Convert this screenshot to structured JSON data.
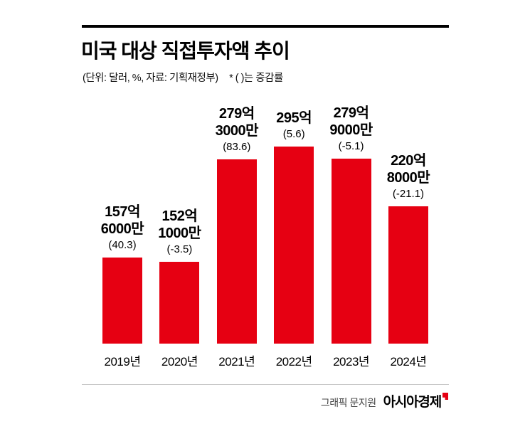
{
  "header": {
    "title": "미국 대상 직접투자액 추이",
    "unit_note": "(단위: 달러, %, 자료: 기획재정부)",
    "growth_note": "* ( )는 증감률"
  },
  "chart_data": {
    "type": "bar",
    "title": "미국 대상 직접투자액 추이",
    "unit_note": "(단위: 달러, %, 자료: 기획재정부)",
    "legend_note": "* ( )는 증감률",
    "categories": [
      "2019년",
      "2020년",
      "2021년",
      "2022년",
      "2023년",
      "2024년"
    ],
    "values": [
      157.6,
      152.1,
      279.3,
      295,
      279.9,
      220.8
    ],
    "value_unit": "억 달러",
    "growth_rates": [
      40.3,
      -3.5,
      83.6,
      5.6,
      -5.1,
      -21.1
    ],
    "ylim": [
      0,
      300
    ],
    "grid": false,
    "legend": "none",
    "bar_color": "#e60012",
    "bars": [
      {
        "category": "2019년",
        "value": 157.6,
        "value_lines": [
          "157억",
          "6000만"
        ],
        "growth_label": "(40.3)"
      },
      {
        "category": "2020년",
        "value": 152.1,
        "value_lines": [
          "152억",
          "1000만"
        ],
        "growth_label": "(-3.5)"
      },
      {
        "category": "2021년",
        "value": 279.3,
        "value_lines": [
          "279억",
          "3000만"
        ],
        "growth_label": "(83.6)"
      },
      {
        "category": "2022년",
        "value": 295,
        "value_lines": [
          "295억"
        ],
        "growth_label": "(5.6)"
      },
      {
        "category": "2023년",
        "value": 279.9,
        "value_lines": [
          "279억",
          "9000만"
        ],
        "growth_label": "(-5.1)"
      },
      {
        "category": "2024년",
        "value": 220.8,
        "value_lines": [
          "220억",
          "8000만"
        ],
        "growth_label": "(-21.1)"
      }
    ]
  },
  "footer": {
    "credit": "그래픽 문지원",
    "brand": "아시아경제"
  }
}
